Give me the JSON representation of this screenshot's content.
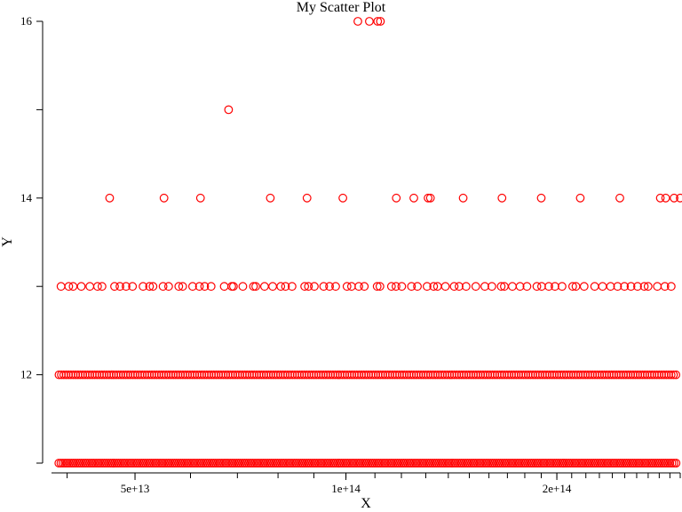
{
  "chart_data": {
    "type": "scatter",
    "title": "My Scatter Plot",
    "xlabel": "X",
    "ylabel": "Y",
    "xscale": "log",
    "xlim": [
      38000000000000,
      300000000000000
    ],
    "ylim": [
      11,
      16
    ],
    "x_ticks": [
      {
        "value": 50000000000000,
        "label": "5e+13"
      },
      {
        "value": 100000000000000,
        "label": "1e+14"
      },
      {
        "value": 200000000000000,
        "label": "2e+14"
      }
    ],
    "y_ticks": [
      {
        "value": 12,
        "label": "12"
      },
      {
        "value": 14,
        "label": "14"
      },
      {
        "value": 16,
        "label": "16"
      }
    ],
    "marker_color": "#ff0000",
    "marker": "open-circle",
    "grid": false,
    "series": [
      {
        "points": [
          {
            "x": 104000000000000,
            "y": 16
          },
          {
            "x": 108000000000000,
            "y": 16
          },
          {
            "x": 111000000000000,
            "y": 16
          },
          {
            "x": 112000000000000,
            "y": 16
          },
          {
            "x": 68000000000000,
            "y": 15
          },
          {
            "x": 46000000000000,
            "y": 14
          },
          {
            "x": 55000000000000,
            "y": 14
          },
          {
            "x": 62000000000000,
            "y": 14
          },
          {
            "x": 78000000000000,
            "y": 14
          },
          {
            "x": 88000000000000,
            "y": 14
          },
          {
            "x": 99000000000000,
            "y": 14
          },
          {
            "x": 118000000000000,
            "y": 14
          },
          {
            "x": 125000000000000,
            "y": 14
          },
          {
            "x": 131000000000000,
            "y": 14
          },
          {
            "x": 132000000000000,
            "y": 14
          },
          {
            "x": 147000000000000,
            "y": 14
          },
          {
            "x": 167000000000000,
            "y": 14
          },
          {
            "x": 190000000000000,
            "y": 14
          },
          {
            "x": 216000000000000,
            "y": 14
          },
          {
            "x": 246000000000000,
            "y": 14
          },
          {
            "x": 281000000000000,
            "y": 14
          },
          {
            "x": 294000000000000,
            "y": 14
          },
          {
            "x": 286000000000000,
            "y": 14
          },
          {
            "x": 300000000000000,
            "y": 14
          }
        ]
      }
    ]
  }
}
